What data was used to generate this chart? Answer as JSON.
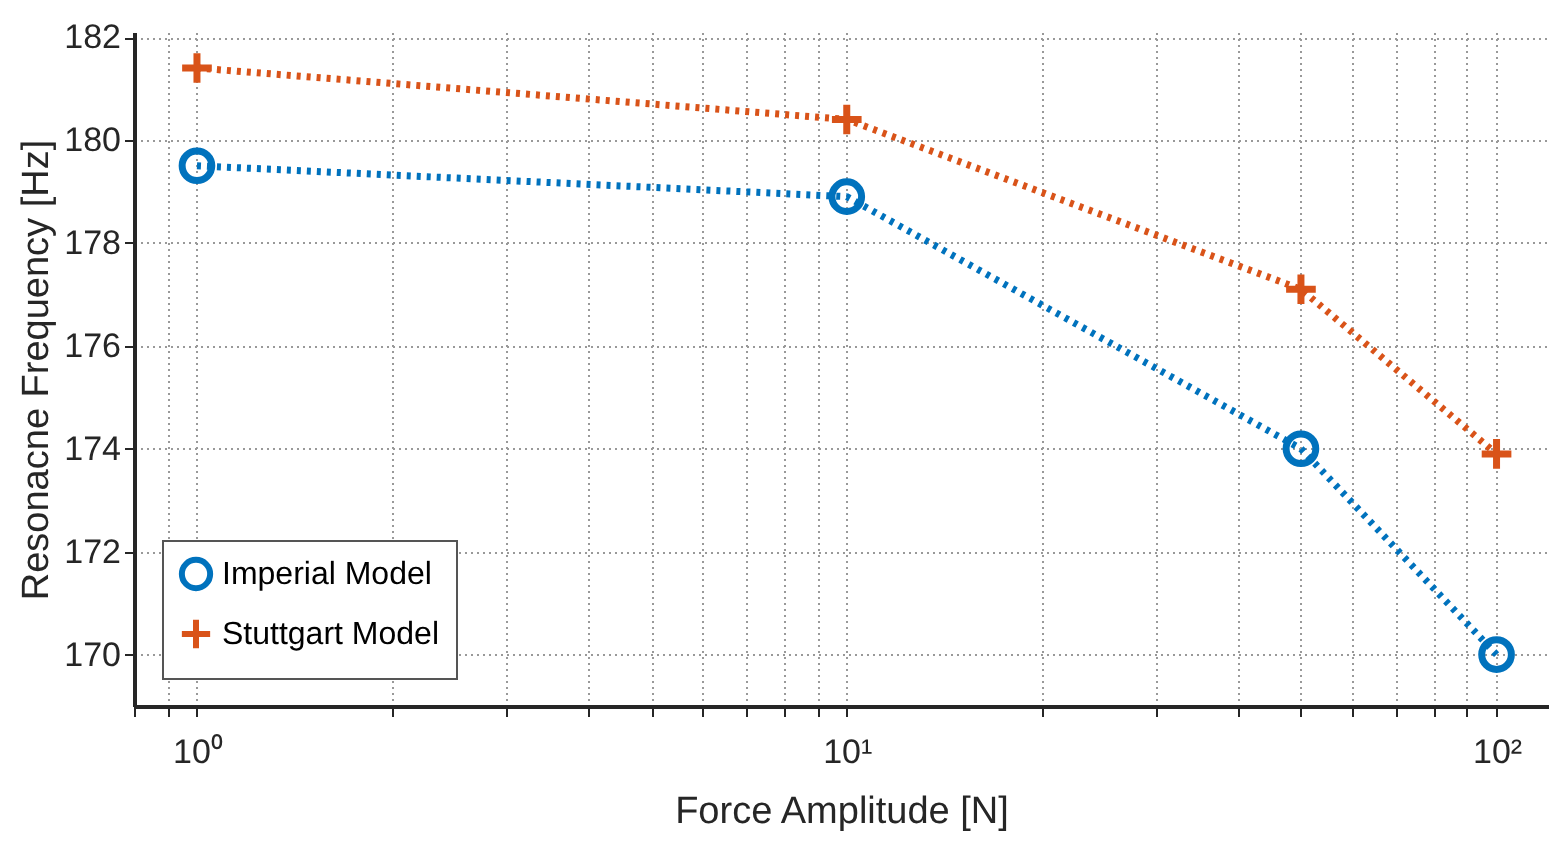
{
  "chart_data": {
    "type": "line",
    "xlabel": "Force Amplitude [N]",
    "ylabel": "Resonacne Frequency [Hz]",
    "x": [
      1,
      10,
      50,
      100
    ],
    "series": [
      {
        "name": "Imperial Model",
        "color": "#0072bd",
        "marker": "circle",
        "values": [
          179.5,
          178.9,
          174.0,
          170.0
        ]
      },
      {
        "name": "Stuttgart Model",
        "color": "#d95319",
        "marker": "cross",
        "values": [
          181.4,
          180.4,
          177.1,
          173.9
        ]
      }
    ],
    "log": "x",
    "xlim": [
      0.8,
      120
    ],
    "ylim": [
      169,
      182.1
    ],
    "xticks": [
      {
        "value": 0.8,
        "label": null
      },
      {
        "value": 0.9,
        "label": null
      },
      {
        "value": 1,
        "label": "10⁰"
      },
      {
        "value": 2,
        "label": null
      },
      {
        "value": 3,
        "label": null
      },
      {
        "value": 4,
        "label": null
      },
      {
        "value": 5,
        "label": null
      },
      {
        "value": 6,
        "label": null
      },
      {
        "value": 7,
        "label": null
      },
      {
        "value": 8,
        "label": null
      },
      {
        "value": 9,
        "label": null
      },
      {
        "value": 10,
        "label": "10¹"
      },
      {
        "value": 20,
        "label": null
      },
      {
        "value": 30,
        "label": null
      },
      {
        "value": 40,
        "label": null
      },
      {
        "value": 50,
        "label": null
      },
      {
        "value": 60,
        "label": null
      },
      {
        "value": 70,
        "label": null
      },
      {
        "value": 80,
        "label": null
      },
      {
        "value": 90,
        "label": null
      },
      {
        "value": 100,
        "label": "10²"
      }
    ],
    "yticks": [
      170,
      172,
      174,
      176,
      178,
      180,
      182
    ],
    "grid": true,
    "legend": "bottom left",
    "line_style": "dotted"
  }
}
